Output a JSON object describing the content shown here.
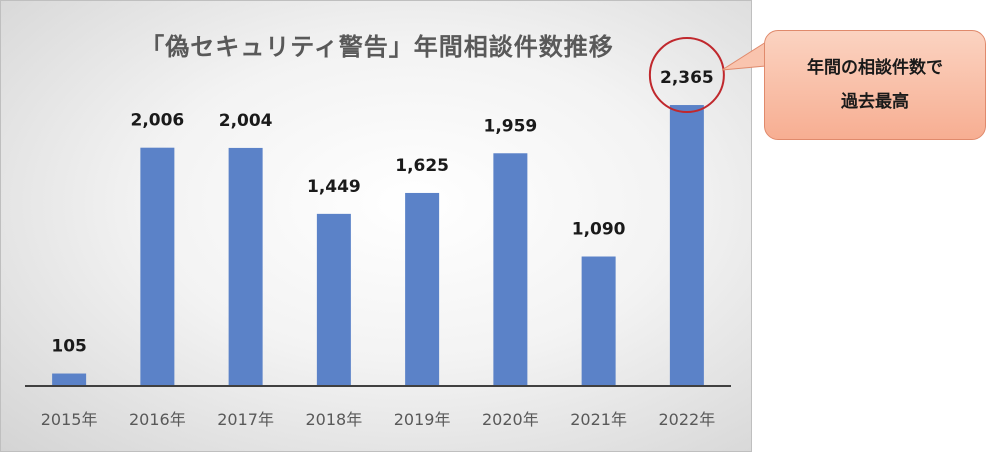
{
  "chart_data": {
    "type": "bar",
    "title": "「偽セキュリティ警告」年間相談件数推移",
    "categories": [
      "2015年",
      "2016年",
      "2017年",
      "2018年",
      "2019年",
      "2020年",
      "2021年",
      "2022年"
    ],
    "values": [
      105,
      2006,
      2004,
      1449,
      1625,
      1959,
      1090,
      2365
    ],
    "value_labels": [
      "105",
      "2,006",
      "2,004",
      "1,449",
      "1,625",
      "1,959",
      "1,090",
      "2,365"
    ],
    "bar_color": "#5b82c8",
    "highlight_index": 7,
    "highlight_color": "#c0282d",
    "ylim": [
      0,
      2500
    ],
    "grid": false,
    "xlabel": "",
    "ylabel": ""
  },
  "callout": {
    "line1": "年間の相談件数で",
    "line2": "過去最高",
    "fill_color": "#f7b39a"
  }
}
